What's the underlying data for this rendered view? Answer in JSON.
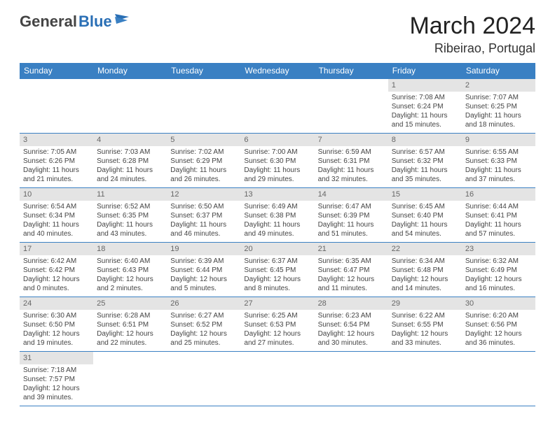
{
  "logo": {
    "text1": "General",
    "text2": "Blue"
  },
  "title": "March 2024",
  "location": "Ribeirao, Portugal",
  "colors": {
    "header_bg": "#3a80c3",
    "header_fg": "#ffffff",
    "daynum_bg": "#e4e4e4",
    "border": "#3a80c3",
    "logo_gray": "#444444",
    "logo_blue": "#2a6fb5"
  },
  "weekdays": [
    "Sunday",
    "Monday",
    "Tuesday",
    "Wednesday",
    "Thursday",
    "Friday",
    "Saturday"
  ],
  "grid": [
    [
      null,
      null,
      null,
      null,
      null,
      {
        "n": "1",
        "sr": "7:08 AM",
        "ss": "6:24 PM",
        "dl": "11 hours and 15 minutes."
      },
      {
        "n": "2",
        "sr": "7:07 AM",
        "ss": "6:25 PM",
        "dl": "11 hours and 18 minutes."
      }
    ],
    [
      {
        "n": "3",
        "sr": "7:05 AM",
        "ss": "6:26 PM",
        "dl": "11 hours and 21 minutes."
      },
      {
        "n": "4",
        "sr": "7:03 AM",
        "ss": "6:28 PM",
        "dl": "11 hours and 24 minutes."
      },
      {
        "n": "5",
        "sr": "7:02 AM",
        "ss": "6:29 PM",
        "dl": "11 hours and 26 minutes."
      },
      {
        "n": "6",
        "sr": "7:00 AM",
        "ss": "6:30 PM",
        "dl": "11 hours and 29 minutes."
      },
      {
        "n": "7",
        "sr": "6:59 AM",
        "ss": "6:31 PM",
        "dl": "11 hours and 32 minutes."
      },
      {
        "n": "8",
        "sr": "6:57 AM",
        "ss": "6:32 PM",
        "dl": "11 hours and 35 minutes."
      },
      {
        "n": "9",
        "sr": "6:55 AM",
        "ss": "6:33 PM",
        "dl": "11 hours and 37 minutes."
      }
    ],
    [
      {
        "n": "10",
        "sr": "6:54 AM",
        "ss": "6:34 PM",
        "dl": "11 hours and 40 minutes."
      },
      {
        "n": "11",
        "sr": "6:52 AM",
        "ss": "6:35 PM",
        "dl": "11 hours and 43 minutes."
      },
      {
        "n": "12",
        "sr": "6:50 AM",
        "ss": "6:37 PM",
        "dl": "11 hours and 46 minutes."
      },
      {
        "n": "13",
        "sr": "6:49 AM",
        "ss": "6:38 PM",
        "dl": "11 hours and 49 minutes."
      },
      {
        "n": "14",
        "sr": "6:47 AM",
        "ss": "6:39 PM",
        "dl": "11 hours and 51 minutes."
      },
      {
        "n": "15",
        "sr": "6:45 AM",
        "ss": "6:40 PM",
        "dl": "11 hours and 54 minutes."
      },
      {
        "n": "16",
        "sr": "6:44 AM",
        "ss": "6:41 PM",
        "dl": "11 hours and 57 minutes."
      }
    ],
    [
      {
        "n": "17",
        "sr": "6:42 AM",
        "ss": "6:42 PM",
        "dl": "12 hours and 0 minutes."
      },
      {
        "n": "18",
        "sr": "6:40 AM",
        "ss": "6:43 PM",
        "dl": "12 hours and 2 minutes."
      },
      {
        "n": "19",
        "sr": "6:39 AM",
        "ss": "6:44 PM",
        "dl": "12 hours and 5 minutes."
      },
      {
        "n": "20",
        "sr": "6:37 AM",
        "ss": "6:45 PM",
        "dl": "12 hours and 8 minutes."
      },
      {
        "n": "21",
        "sr": "6:35 AM",
        "ss": "6:47 PM",
        "dl": "12 hours and 11 minutes."
      },
      {
        "n": "22",
        "sr": "6:34 AM",
        "ss": "6:48 PM",
        "dl": "12 hours and 14 minutes."
      },
      {
        "n": "23",
        "sr": "6:32 AM",
        "ss": "6:49 PM",
        "dl": "12 hours and 16 minutes."
      }
    ],
    [
      {
        "n": "24",
        "sr": "6:30 AM",
        "ss": "6:50 PM",
        "dl": "12 hours and 19 minutes."
      },
      {
        "n": "25",
        "sr": "6:28 AM",
        "ss": "6:51 PM",
        "dl": "12 hours and 22 minutes."
      },
      {
        "n": "26",
        "sr": "6:27 AM",
        "ss": "6:52 PM",
        "dl": "12 hours and 25 minutes."
      },
      {
        "n": "27",
        "sr": "6:25 AM",
        "ss": "6:53 PM",
        "dl": "12 hours and 27 minutes."
      },
      {
        "n": "28",
        "sr": "6:23 AM",
        "ss": "6:54 PM",
        "dl": "12 hours and 30 minutes."
      },
      {
        "n": "29",
        "sr": "6:22 AM",
        "ss": "6:55 PM",
        "dl": "12 hours and 33 minutes."
      },
      {
        "n": "30",
        "sr": "6:20 AM",
        "ss": "6:56 PM",
        "dl": "12 hours and 36 minutes."
      }
    ],
    [
      {
        "n": "31",
        "sr": "7:18 AM",
        "ss": "7:57 PM",
        "dl": "12 hours and 39 minutes."
      },
      null,
      null,
      null,
      null,
      null,
      null
    ]
  ],
  "labels": {
    "sunrise": "Sunrise:",
    "sunset": "Sunset:",
    "daylight": "Daylight:"
  }
}
